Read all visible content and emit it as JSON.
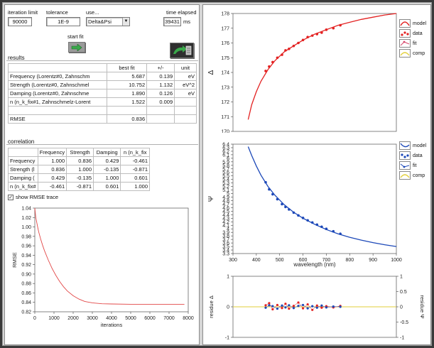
{
  "colors": {
    "model_red": "#e32222",
    "data_red": "#e32222",
    "model_blue": "#1c48b8",
    "data_blue": "#1c48b8",
    "fit_pink": "#d6486b",
    "comp_yellow": "#e2cf3a",
    "rmse_red": "#e24747",
    "button_green": "#3aa84a"
  },
  "header": {
    "iteration_limit_label": "iteration limit",
    "iteration_limit_value": "90000",
    "tolerance_label": "tolerance",
    "tolerance_value": "1E-9",
    "use_label": "use...",
    "use_value": "Delta&Psi",
    "time_elapsed_label": "time elapsed",
    "time_elapsed_value": "39431",
    "time_unit": "ms",
    "start_fit_label": "start fit"
  },
  "results": {
    "title": "results",
    "col_headers": [
      "",
      "best fit",
      "+/-",
      "unit"
    ],
    "rows": [
      {
        "name": "Frequency  (Lorentz#0, Zahnschm",
        "best": "5.687",
        "err": "0.139",
        "unit": "eV"
      },
      {
        "name": "Strength  (Lorentz#0, Zahnschmel",
        "best": "10.752",
        "err": "1.132",
        "unit": "eV^2"
      },
      {
        "name": "Damping  (Lorentz#0, Zahnschme",
        "best": "1.890",
        "err": "0.126",
        "unit": "eV"
      },
      {
        "name": "n  (n_k_fix#1, Zahnschmelz-Lorent",
        "best": "1.522",
        "err": "0.009",
        "unit": ""
      },
      {
        "name": "",
        "best": "",
        "err": "",
        "unit": ""
      },
      {
        "name": "RMSE",
        "best": "0.836",
        "err": "",
        "unit": ""
      }
    ]
  },
  "correlation": {
    "title": "correlation",
    "col_headers": [
      "",
      "Frequency",
      "Strength",
      "Damping",
      "n  (n_k_fix"
    ],
    "rows": [
      {
        "name": "Frequency",
        "vals": [
          "1.000",
          "0.836",
          "0.429",
          "-0.461"
        ]
      },
      {
        "name": "Strength  (l",
        "vals": [
          "0.836",
          "1.000",
          "-0.135",
          "-0.871"
        ]
      },
      {
        "name": "Damping  (",
        "vals": [
          "0.429",
          "-0.135",
          "1.000",
          "0.601"
        ]
      },
      {
        "name": "n  (n_k_fix#",
        "vals": [
          "-0.461",
          "-0.871",
          "0.601",
          "1.000"
        ]
      }
    ]
  },
  "rmse_trace": {
    "checkbox_label": "show RMSE trace",
    "checked": true
  },
  "legend": {
    "model": "model",
    "data": "data",
    "fit": "fit",
    "comp": "comp"
  },
  "chart_data": [
    {
      "type": "line",
      "ylabel": "RMSE",
      "xlabel": "iterations",
      "xlim": [
        0,
        8000
      ],
      "ylim": [
        0.82,
        1.04
      ],
      "xticks": [
        0,
        1000,
        2000,
        3000,
        4000,
        5000,
        6000,
        7000,
        8000
      ],
      "yticks": [
        0.82,
        0.84,
        0.86,
        0.88,
        0.9,
        0.92,
        0.94,
        0.96,
        0.98,
        1,
        1.02,
        1.04
      ],
      "series": [
        {
          "name": "",
          "x": [
            0,
            50,
            100,
            150,
            200,
            300,
            400,
            500,
            700,
            900,
            1100,
            1300,
            1500,
            1700,
            2000,
            2300,
            2600,
            3000,
            3500,
            4000,
            5000,
            6000,
            7000,
            7800
          ],
          "y": [
            1.04,
            1.02,
            1.01,
            1.0,
            0.99,
            0.975,
            0.962,
            0.95,
            0.93,
            0.912,
            0.897,
            0.884,
            0.873,
            0.864,
            0.854,
            0.847,
            0.842,
            0.839,
            0.837,
            0.8365,
            0.836,
            0.836,
            0.836,
            0.836
          ]
        }
      ]
    },
    {
      "type": "line",
      "ylabel": "Δ",
      "xlim": [
        300,
        1000
      ],
      "ylim": [
        170,
        178
      ],
      "yticks": [
        170,
        171,
        172,
        173,
        174,
        175,
        176,
        177,
        178
      ],
      "series": [
        {
          "name": "model",
          "x": [
            365,
            380,
            400,
            420,
            450,
            480,
            520,
            560,
            600,
            650,
            700,
            750,
            800,
            850,
            900,
            950,
            1000
          ],
          "y": [
            170.8,
            171.8,
            172.7,
            173.4,
            174.2,
            174.8,
            175.4,
            175.8,
            176.2,
            176.6,
            176.9,
            177.2,
            177.4,
            177.6,
            177.75,
            177.9,
            178.0
          ]
        },
        {
          "name": "data",
          "x": [
            440,
            455,
            470,
            490,
            510,
            525,
            540,
            560,
            580,
            600,
            620,
            640,
            660,
            680,
            700,
            730,
            760
          ],
          "y": [
            174.1,
            174.4,
            174.7,
            175.0,
            175.2,
            175.5,
            175.6,
            175.8,
            176.0,
            176.2,
            176.4,
            176.5,
            176.6,
            176.7,
            176.9,
            177.0,
            177.2
          ]
        }
      ]
    },
    {
      "type": "line",
      "ylabel": "Ψ",
      "xlabel": "wavelength (nm)",
      "xlim": [
        300,
        1000
      ],
      "ylim": [
        3.3,
        6.4
      ],
      "xticks": [
        300,
        400,
        500,
        600,
        700,
        800,
        900,
        1000
      ],
      "yticks": [
        3.3,
        3.4,
        3.5,
        3.6,
        3.7,
        3.8,
        3.9,
        4,
        4.1,
        4.2,
        4.3,
        4.4,
        4.5,
        4.6,
        4.7,
        4.8,
        4.9,
        5,
        5.1,
        5.2,
        5.3,
        5.4,
        5.5,
        5.6,
        5.7,
        5.8,
        5.9,
        6,
        6.1,
        6.2,
        6.3,
        6.4
      ],
      "series": [
        {
          "name": "model",
          "x": [
            365,
            380,
            400,
            420,
            450,
            480,
            520,
            560,
            600,
            650,
            700,
            750,
            800,
            850,
            900,
            950,
            1000
          ],
          "y": [
            6.33,
            6.08,
            5.78,
            5.52,
            5.2,
            4.95,
            4.68,
            4.47,
            4.3,
            4.13,
            3.98,
            3.86,
            3.76,
            3.68,
            3.61,
            3.55,
            3.5
          ]
        },
        {
          "name": "data",
          "x": [
            440,
            455,
            470,
            490,
            510,
            525,
            540,
            560,
            580,
            600,
            620,
            640,
            660,
            680,
            700,
            730,
            760
          ],
          "y": [
            5.32,
            5.12,
            4.98,
            4.84,
            4.7,
            4.62,
            4.55,
            4.46,
            4.38,
            4.31,
            4.24,
            4.18,
            4.12,
            4.06,
            4.0,
            3.93,
            3.86
          ]
        }
      ]
    },
    {
      "type": "scatter",
      "ylabel": "residue Δ",
      "y2label": "residue Ψ",
      "xlim": [
        300,
        1000
      ],
      "ylim": [
        -1,
        1
      ],
      "yticks": [
        -1,
        0,
        1
      ],
      "y2ticks": [
        -1,
        -0.5,
        0,
        0.5,
        1
      ],
      "series": [
        {
          "name": "Δ",
          "x": [
            440,
            455,
            470,
            490,
            510,
            525,
            540,
            560,
            580,
            600,
            620,
            640,
            660,
            680,
            700,
            730,
            760
          ],
          "y": [
            0.05,
            0.12,
            -0.08,
            0.06,
            -0.04,
            0.1,
            -0.06,
            0.03,
            0.14,
            -0.05,
            0.08,
            -0.1,
            0.04,
            -0.03,
            0.02,
            -0.02,
            0.03
          ]
        },
        {
          "name": "Ψ",
          "x": [
            440,
            455,
            470,
            490,
            510,
            525,
            540,
            560,
            580,
            600,
            620,
            640,
            660,
            680,
            700,
            730,
            760
          ],
          "y": [
            -0.03,
            0.05,
            0.02,
            -0.06,
            0.04,
            -0.02,
            0.05,
            -0.04,
            0.03,
            0.06,
            -0.05,
            0.02,
            -0.03,
            0.04,
            -0.02,
            0.01,
            0.0
          ]
        }
      ]
    }
  ]
}
